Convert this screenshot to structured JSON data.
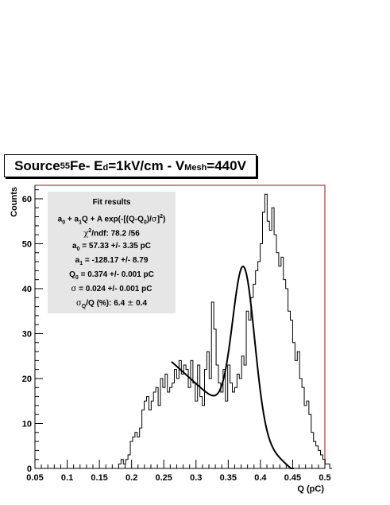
{
  "title": {
    "prefix": "Source ",
    "iso_sup": "55",
    "iso_rest": "Fe- E",
    "ed_sub": "d",
    "mid": "=1kV/cm - V",
    "vmesh_sub": "Mesh",
    "end": "=440V"
  },
  "stats": {
    "header": "Fit results",
    "formula": "a0 + a1Q + A exp(-[(Q-Q0)/σ]²)",
    "chi2_label": "χ²/ndf:",
    "chi2_value": "78.2 /56",
    "a0": "a0 = 57.33 +/- 3.35 pC",
    "a1": "a1 = -128.17 +/- 8.79",
    "q0": "Q0 = 0.374 +/- 0.001 pC",
    "sigma": "σ = 0.024 +/- 0.001 pC",
    "resolution": "σQ/Q (%): 6.4 ± 0.4"
  },
  "colors": {
    "frame": "#8b1a1a",
    "histogram": "#000000",
    "fit": "#000000",
    "stats_bg": "#e6e6e6"
  },
  "chart_data": {
    "type": "histogram",
    "xlabel": "Q (pC)",
    "ylabel": "Counts",
    "xlim": [
      0.05,
      0.5
    ],
    "ylim": [
      0,
      63
    ],
    "x_ticks": [
      0.05,
      0.1,
      0.15,
      0.2,
      0.25,
      0.3,
      0.35,
      0.4,
      0.45,
      0.5
    ],
    "y_ticks": [
      0,
      10,
      20,
      30,
      40,
      50,
      60
    ],
    "bin_start": 0.18,
    "bin_width": 0.0036,
    "bin_counts": [
      1,
      2,
      1,
      2,
      3,
      6,
      7,
      8,
      7,
      9,
      13,
      15,
      16,
      13,
      15,
      17,
      18,
      14,
      20,
      18,
      21,
      17,
      18,
      19,
      22,
      20,
      24,
      21,
      23,
      22,
      18,
      24,
      19,
      15,
      23,
      16,
      14,
      22,
      26,
      20,
      37,
      31,
      23,
      19,
      17,
      22,
      15,
      23,
      19,
      17,
      18,
      21,
      20,
      25,
      23,
      35,
      33,
      38,
      41,
      44,
      46,
      50,
      57,
      61,
      55,
      53,
      58,
      52,
      48,
      45,
      47,
      42,
      40,
      35,
      33,
      28,
      24,
      26,
      20,
      18,
      14,
      15,
      12,
      8,
      6,
      5,
      4,
      3,
      2,
      1,
      1,
      0
    ],
    "fit": {
      "function": "a0 + a1*Q + A*exp(-((Q-Q0)/sigma)^2)",
      "a0": 57.33,
      "a1": -128.17,
      "Q0": 0.374,
      "sigma": 0.024,
      "A": 35.5,
      "x_range": [
        0.262,
        0.452
      ]
    }
  }
}
